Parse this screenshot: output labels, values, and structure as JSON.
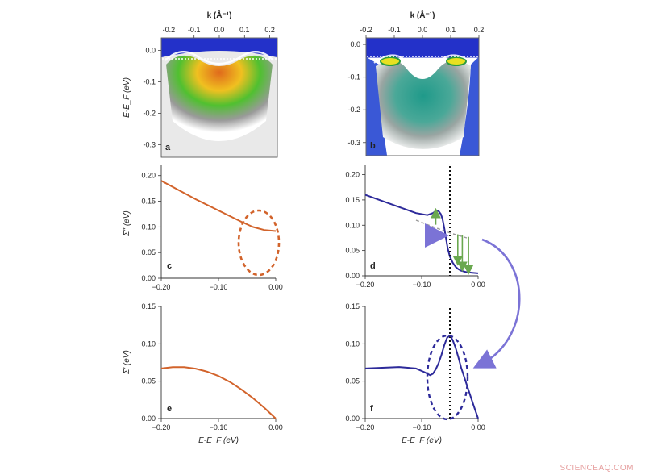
{
  "watermark": "SCIENCEAQ.COM",
  "colors": {
    "orange_curve": "#d2632b",
    "blue_curve": "#2d2a9a",
    "arrow_red": "#d9543a",
    "arrow_purple": "#7b73d6",
    "green_arrows": "#6aa84f",
    "dashed_gray": "#999999"
  },
  "chart_data": [
    {
      "panel": "a",
      "type": "heatmap",
      "top_axis_label": "k (Å⁻¹)",
      "ylabel": "E-E_F (eV)",
      "xticks": [
        "-0.2",
        "-0.1",
        "0.0",
        "0.1",
        "0.2"
      ],
      "yticks": [
        "0.0",
        "-0.1",
        "-0.2",
        "-0.3"
      ],
      "xlim": [
        -0.23,
        0.23
      ],
      "ylim": [
        -0.34,
        0.04
      ],
      "colormap": [
        "#2030d0",
        "#ffffff",
        "#b0b0b0",
        "#30c030",
        "#f0e020",
        "#e07020"
      ]
    },
    {
      "panel": "b",
      "type": "heatmap",
      "top_axis_label": "k (Å⁻¹)",
      "xticks": [
        "-0.2",
        "-0.1",
        "0.0",
        "0.1",
        "0.2"
      ],
      "yticks": [
        "0.0",
        "-0.1",
        "-0.2",
        "-0.3"
      ],
      "xlim": [
        -0.2,
        0.2
      ],
      "ylim": [
        -0.34,
        0.02
      ],
      "colormap": [
        "#2030d0",
        "#ffffff",
        "#a0a0a0",
        "#30a090",
        "#f0e020"
      ]
    },
    {
      "panel": "c",
      "type": "line",
      "ylabel": "Σ'' (eV)",
      "xticks": [
        "−0.20",
        "−0.10",
        "0.00"
      ],
      "yticks": [
        "0.00",
        "0.05",
        "0.10",
        "0.15",
        "0.20"
      ],
      "xlim": [
        -0.2,
        0.0
      ],
      "ylim": [
        0.0,
        0.22
      ],
      "series": [
        {
          "x": [
            -0.2,
            -0.18,
            -0.16,
            -0.14,
            -0.12,
            -0.1,
            -0.08,
            -0.06,
            -0.04,
            -0.02,
            0.0
          ],
          "values": [
            0.19,
            0.178,
            0.166,
            0.154,
            0.143,
            0.132,
            0.121,
            0.11,
            0.1,
            0.094,
            0.092
          ]
        }
      ]
    },
    {
      "panel": "d",
      "type": "line",
      "xticks": [
        "−0.20",
        "−0.10",
        "0.00"
      ],
      "yticks": [
        "0.00",
        "0.05",
        "0.10",
        "0.15",
        "0.20"
      ],
      "xlim": [
        -0.2,
        0.0
      ],
      "ylim": [
        0.0,
        0.22
      ],
      "vline_x": -0.05,
      "series": [
        {
          "x": [
            -0.2,
            -0.17,
            -0.14,
            -0.11,
            -0.09,
            -0.08,
            -0.075,
            -0.07,
            -0.066,
            -0.063,
            -0.06,
            -0.057,
            -0.054,
            -0.05,
            -0.045,
            -0.04,
            -0.035,
            -0.03,
            -0.02,
            -0.01,
            0.0
          ],
          "values": [
            0.16,
            0.148,
            0.136,
            0.124,
            0.12,
            0.124,
            0.128,
            0.128,
            0.122,
            0.112,
            0.095,
            0.075,
            0.055,
            0.038,
            0.026,
            0.018,
            0.013,
            0.01,
            0.007,
            0.006,
            0.005
          ]
        }
      ],
      "dashed_series": {
        "x": [
          -0.11,
          -0.08,
          -0.05,
          -0.02
        ],
        "values": [
          0.11,
          0.097,
          0.085,
          0.075
        ]
      }
    },
    {
      "panel": "e",
      "type": "line",
      "ylabel": "Σ' (eV)",
      "xlabel": "E-E_F (eV)",
      "xticks": [
        "−0.20",
        "−0.10",
        "0.00"
      ],
      "yticks": [
        "0.00",
        "0.05",
        "0.10",
        "0.15"
      ],
      "xlim": [
        -0.2,
        0.0
      ],
      "ylim": [
        0.0,
        0.15
      ],
      "series": [
        {
          "x": [
            -0.2,
            -0.18,
            -0.16,
            -0.14,
            -0.12,
            -0.1,
            -0.08,
            -0.06,
            -0.04,
            -0.02,
            0.0
          ],
          "values": [
            0.067,
            0.0688,
            0.0688,
            0.0668,
            0.0628,
            0.057,
            0.049,
            0.039,
            0.0275,
            0.0145,
            0.0
          ]
        }
      ]
    },
    {
      "panel": "f",
      "type": "line",
      "xlabel": "E-E_F (eV)",
      "xticks": [
        "−0.20",
        "−0.10",
        "0.00"
      ],
      "yticks": [
        "0.00",
        "0.05",
        "0.10",
        "0.15"
      ],
      "xlim": [
        -0.2,
        0.0
      ],
      "ylim": [
        0.0,
        0.15
      ],
      "vline_x": -0.05,
      "series": [
        {
          "x": [
            -0.2,
            -0.17,
            -0.14,
            -0.11,
            -0.095,
            -0.085,
            -0.08,
            -0.075,
            -0.07,
            -0.065,
            -0.06,
            -0.055,
            -0.05,
            -0.045,
            -0.04,
            -0.035,
            -0.03,
            -0.02,
            -0.01,
            0.0
          ],
          "values": [
            0.067,
            0.068,
            0.069,
            0.067,
            0.062,
            0.058,
            0.06,
            0.066,
            0.074,
            0.085,
            0.098,
            0.108,
            0.111,
            0.105,
            0.095,
            0.082,
            0.068,
            0.045,
            0.022,
            0.0
          ]
        }
      ]
    }
  ]
}
